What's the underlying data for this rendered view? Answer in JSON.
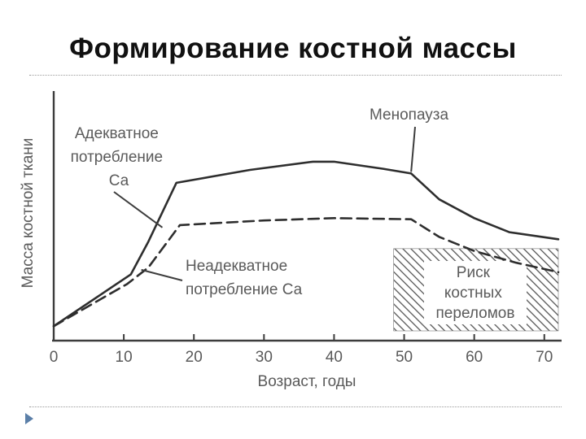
{
  "slide": {
    "title": "Формирование костной массы",
    "accent_color": "#5b7fa8"
  },
  "chart_data": {
    "type": "line",
    "xlabel": "Возраст, годы",
    "ylabel": "Масса костной ткани",
    "xlim": [
      0,
      72
    ],
    "ylim": [
      0,
      100
    ],
    "x_ticks": [
      0,
      10,
      20,
      30,
      40,
      50,
      60,
      70
    ],
    "x_tick_labels": [
      "0",
      "10",
      "20",
      "30",
      "40",
      "50",
      "60",
      "70"
    ],
    "y_ticks_shown": false,
    "grid": false,
    "series": [
      {
        "name": "Адекватное потребление Са",
        "style": "solid",
        "points": [
          [
            0,
            2
          ],
          [
            11,
            24
          ],
          [
            13.5,
            38
          ],
          [
            17.5,
            63
          ],
          [
            28,
            68.5
          ],
          [
            37,
            72
          ],
          [
            40,
            72
          ],
          [
            47,
            69
          ],
          [
            51,
            67
          ],
          [
            55,
            56
          ],
          [
            60,
            48
          ],
          [
            65,
            42
          ],
          [
            72,
            39
          ]
        ]
      },
      {
        "name": "Неадекватное потребление Са",
        "style": "dashed",
        "points": [
          [
            0,
            2
          ],
          [
            10.5,
            20
          ],
          [
            13.5,
            27
          ],
          [
            18,
            45
          ],
          [
            30,
            47
          ],
          [
            40,
            48
          ],
          [
            51,
            47.5
          ],
          [
            55,
            40
          ],
          [
            60,
            34
          ],
          [
            66,
            29
          ],
          [
            72,
            25
          ]
        ]
      }
    ],
    "annotations": [
      {
        "lines": [
          "Адекватное",
          "потребление",
          "Са"
        ],
        "target": [
          15.5,
          44
        ]
      },
      {
        "lines": [
          "Неадекватное",
          "потребление Са"
        ],
        "target": [
          12.5,
          26
        ]
      },
      {
        "lines": [
          "Менопауза"
        ],
        "target": [
          51,
          67
        ]
      },
      {
        "lines": [
          "Риск",
          "костных",
          "переломов"
        ],
        "region": {
          "x": [
            48.5,
            72
          ],
          "y": [
            0,
            35
          ]
        }
      }
    ]
  }
}
